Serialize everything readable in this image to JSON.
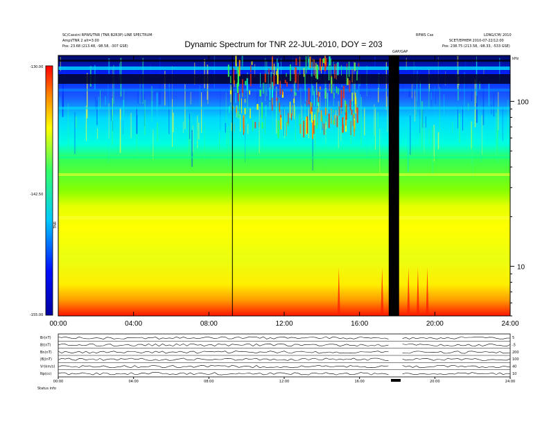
{
  "chart_data": {
    "type": "heatmap",
    "title": "Dynamic Spectrum for TNR 22-JUL-2010, DOY = 203",
    "header_left_lines": [
      "SC/Cassini RPWS/TNR (TNR B2R3P) LINE SPECTRUM",
      "Ampl/TNR 2 alt=3.00",
      "Pos:   23.68 (213.48, -98.58, -307 GSE)"
    ],
    "header_right_lines": [
      "RPWS Cas",
      "LONG/CM/ 2010",
      "SCET/EPHEM 2010-07-22/12:00",
      "Pos:   238.75 (213.58, -98.33, -533 GSE)"
    ],
    "gap_label": "GAP/GAP",
    "colorbar": {
      "label": "TNR",
      "ticks": [
        "-130.00",
        "-142.50",
        "-155.00"
      ],
      "range": [
        -155.0,
        -130.0
      ],
      "colors": [
        "#0000a0",
        "#0010ff",
        "#00c8ff",
        "#33ff66",
        "#ffff00",
        "#ff8800",
        "#ff0000"
      ]
    },
    "x": {
      "range_hours": [
        0,
        24
      ],
      "tick_labels": [
        "00:00",
        "04:00",
        "08:00",
        "12:00",
        "16:00",
        "20:00",
        "24:00"
      ]
    },
    "y": {
      "scale": "log",
      "range_khz": [
        5,
        190
      ],
      "tick_labels": [
        "100",
        "10"
      ],
      "tick_values": [
        100,
        10
      ],
      "unit_label": "kHz"
    },
    "features": {
      "data_gap_hours": [
        17.55,
        18.1
      ],
      "vertical_line_hour": 9.25,
      "noise_burst_hours": [
        9.0,
        16.0
      ]
    },
    "bottom_panels": {
      "labels": [
        "Br(nT)",
        "Bt(nT)",
        "Bn(nT)",
        "|B|(nT)",
        "Vr(km/s)",
        "Np(cc)"
      ],
      "right_ticks": [
        "5",
        "-5",
        "200",
        "100",
        "40",
        "10"
      ],
      "time_ticks": [
        "00:00",
        "04:00",
        "08:00",
        "12:00",
        "16:00",
        "20:00",
        "24:00"
      ],
      "footer": "Status   info"
    }
  }
}
